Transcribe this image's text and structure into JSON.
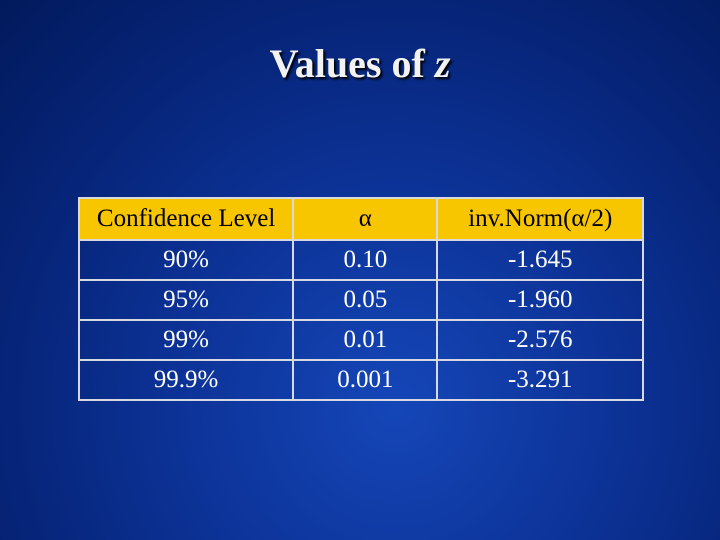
{
  "title": {
    "text": "Values of",
    "variable": "z"
  },
  "table": {
    "header": [
      "Confidence Level",
      "α",
      "inv.Norm(α/2)"
    ],
    "rows": [
      [
        "90%",
        "0.10",
        "-1.645"
      ],
      [
        "95%",
        "0.05",
        "-1.960"
      ],
      [
        "99%",
        "0.01",
        "-2.576"
      ],
      [
        "99.9%",
        "0.001",
        "-3.291"
      ]
    ]
  }
}
